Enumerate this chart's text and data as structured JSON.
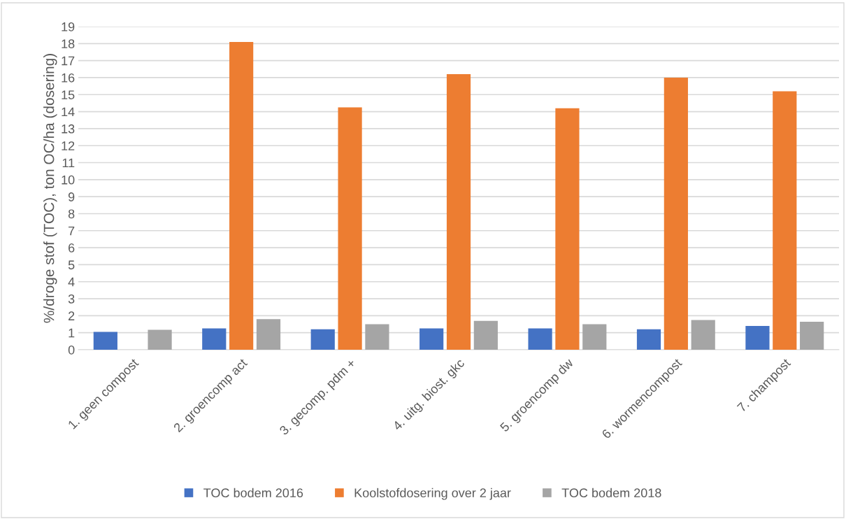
{
  "chart_data": {
    "type": "bar",
    "ylabel": "%/droge stof (TOC), ton OC/ha (dosering)",
    "categories": [
      "1. geen compost",
      "2. groencomp act",
      "3. gecomp. pdm +",
      "4. uitg. biost. gkc",
      "5. groencomp dw",
      "6. wormencompost",
      "7. champost"
    ],
    "series": [
      {
        "name": "TOC bodem 2016",
        "color": "#4472c4",
        "values": [
          1.05,
          1.25,
          1.2,
          1.25,
          1.25,
          1.2,
          1.4
        ]
      },
      {
        "name": "Koolstofdosering over 2 jaar",
        "color": "#ed7d31",
        "values": [
          null,
          18.1,
          14.25,
          16.2,
          14.2,
          16.0,
          15.2
        ]
      },
      {
        "name": "TOC bodem 2018",
        "color": "#a5a5a5",
        "values": [
          1.17,
          1.8,
          1.5,
          1.7,
          1.5,
          1.75,
          1.65
        ]
      }
    ],
    "ylim": [
      0,
      19
    ],
    "yticks": [
      0,
      1,
      2,
      3,
      4,
      5,
      6,
      7,
      8,
      9,
      10,
      11,
      12,
      13,
      14,
      15,
      16,
      17,
      18,
      19
    ],
    "grid": "y",
    "legend": "bottom"
  }
}
